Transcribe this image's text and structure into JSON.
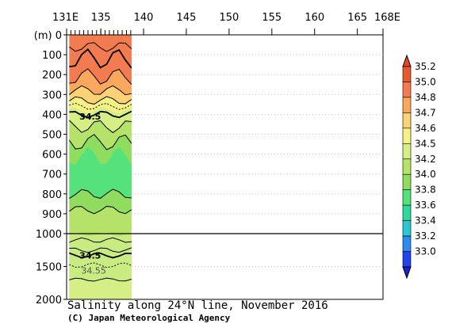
{
  "chart_data": {
    "type": "heatmap",
    "title": "Salinity along 24°N line, November 2016",
    "credit": "(C) Japan Meteorological Agency",
    "x_axis": {
      "tick_labels": [
        "131E",
        "135",
        "140",
        "145",
        "150",
        "155",
        "160",
        "165",
        "168E"
      ],
      "tick_values": [
        131,
        135,
        140,
        145,
        150,
        155,
        160,
        165,
        168
      ],
      "range": [
        131,
        168
      ]
    },
    "y_axis": {
      "unit_label": "(m)",
      "upper_ticks": [
        "0",
        "100",
        "200",
        "300",
        "400",
        "500",
        "600",
        "700",
        "800",
        "900",
        "1000"
      ],
      "upper_values": [
        0,
        100,
        200,
        300,
        400,
        500,
        600,
        700,
        800,
        900,
        1000
      ],
      "lower_ticks": [
        "1500",
        "2000"
      ],
      "lower_values": [
        1500,
        2000
      ],
      "range": [
        0,
        2000
      ],
      "break_depth": 1000
    },
    "data_extent_lon": [
      131.3,
      138.6
    ],
    "colorbar": {
      "labels": [
        "35.2",
        "35.0",
        "34.8",
        "34.7",
        "34.6",
        "34.5",
        "34.2",
        "34.0",
        "33.8",
        "33.6",
        "33.4",
        "33.2",
        "33.0"
      ],
      "colors": [
        "#e8592e",
        "#f27b4f",
        "#f9a85e",
        "#fcd274",
        "#f6f184",
        "#d6ee86",
        "#b5e36a",
        "#8fdc5e",
        "#55e27a",
        "#2ed9a0",
        "#2cc7d2",
        "#2c8cf0",
        "#2244ee"
      ],
      "arrow_top_color": "#e8452a",
      "arrow_bottom_color": "#1a22c8"
    },
    "annotations": [
      {
        "text": "34.5",
        "depth": 410,
        "lon": 132.5
      },
      {
        "text": "34.5",
        "depth": 1330,
        "lon": 132.5
      },
      {
        "text": "34.55",
        "depth": 1560,
        "lon": 132.7
      }
    ]
  }
}
